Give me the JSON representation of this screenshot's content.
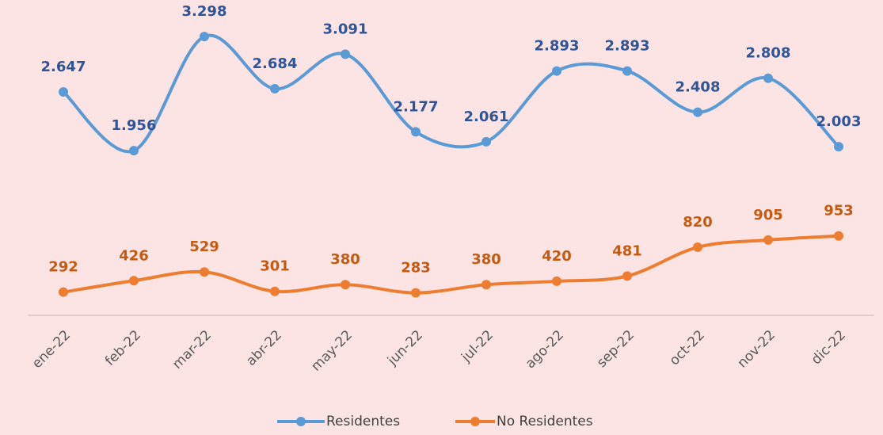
{
  "chart_data": {
    "type": "line",
    "categories": [
      "ene-22",
      "feb-22",
      "mar-22",
      "abr-22",
      "may-22",
      "jun-22",
      "jul-22",
      "ago-22",
      "sep-22",
      "oct-22",
      "nov-22",
      "dic-22"
    ],
    "series": [
      {
        "name": "Residentes",
        "color": "#5b9bd5",
        "label_color": "#2f5597",
        "values": [
          2647,
          1956,
          3298,
          2684,
          3091,
          2177,
          2061,
          2893,
          2893,
          2408,
          2808,
          2003
        ],
        "value_labels": [
          "2.647",
          "1.956",
          "3.298",
          "2.684",
          "3.091",
          "2.177",
          "2.061",
          "2.893",
          "2.893",
          "2.408",
          "2.808",
          "2.003"
        ]
      },
      {
        "name": "No Residentes",
        "color": "#ed7d31",
        "label_color": "#c55a11",
        "values": [
          292,
          426,
          529,
          301,
          380,
          283,
          380,
          420,
          481,
          820,
          905,
          953
        ]
      }
    ],
    "ylim": [
      0,
      3700
    ],
    "smooth": true
  }
}
